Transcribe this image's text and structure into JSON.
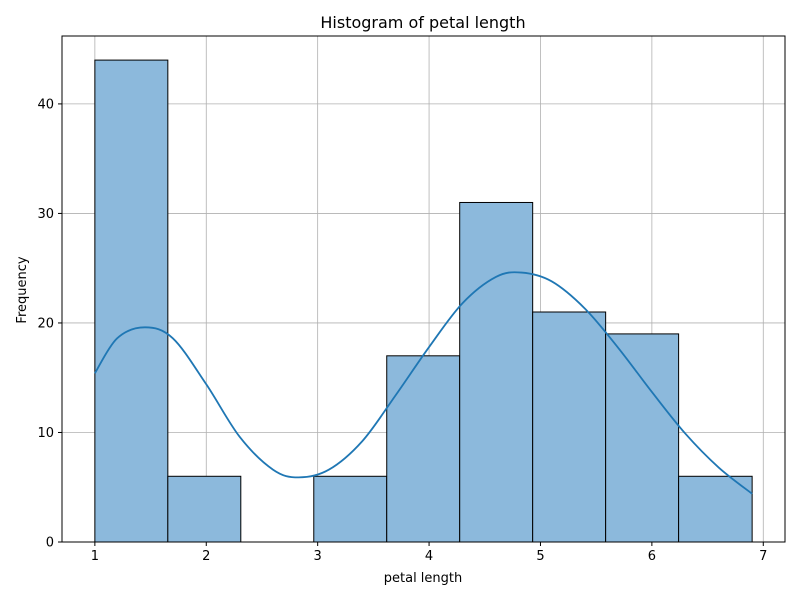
{
  "chart_data": {
    "type": "bar",
    "title": "Histogram of petal length",
    "xlabel": "petal length",
    "ylabel": "Frequency",
    "bins": [
      {
        "start": 1.0,
        "end": 1.655,
        "count": 44
      },
      {
        "start": 1.655,
        "end": 2.31,
        "count": 6
      },
      {
        "start": 2.31,
        "end": 2.965,
        "count": 0
      },
      {
        "start": 2.965,
        "end": 3.62,
        "count": 6
      },
      {
        "start": 3.62,
        "end": 4.275,
        "count": 17
      },
      {
        "start": 4.275,
        "end": 4.93,
        "count": 31
      },
      {
        "start": 4.93,
        "end": 5.585,
        "count": 21
      },
      {
        "start": 5.585,
        "end": 6.24,
        "count": 19
      },
      {
        "start": 6.24,
        "end": 6.9,
        "count": 6
      }
    ],
    "kde": {
      "x": [
        1.0,
        1.2,
        1.45,
        1.7,
        2.0,
        2.3,
        2.6,
        2.83,
        3.1,
        3.4,
        3.7,
        4.0,
        4.3,
        4.6,
        4.83,
        5.1,
        5.4,
        5.7,
        6.0,
        6.3,
        6.6,
        6.9
      ],
      "y": [
        15.4,
        18.6,
        19.6,
        18.6,
        14.4,
        9.6,
        6.6,
        5.9,
        6.6,
        9.2,
        13.4,
        17.8,
        21.8,
        24.2,
        24.6,
        23.8,
        21.3,
        17.7,
        13.7,
        9.9,
        6.8,
        4.4
      ]
    },
    "xlim": [
      0.705,
      7.195
    ],
    "ylim": [
      0,
      46.2
    ],
    "xticks": [
      1,
      2,
      3,
      4,
      5,
      6,
      7
    ],
    "yticks": [
      0,
      10,
      20,
      30,
      40
    ],
    "grid": true,
    "colors": {
      "bar_fill": "#8cb9dc",
      "bar_edge": "#000000",
      "kde_line": "#1f77b4",
      "grid": "#b0b0b0"
    }
  }
}
